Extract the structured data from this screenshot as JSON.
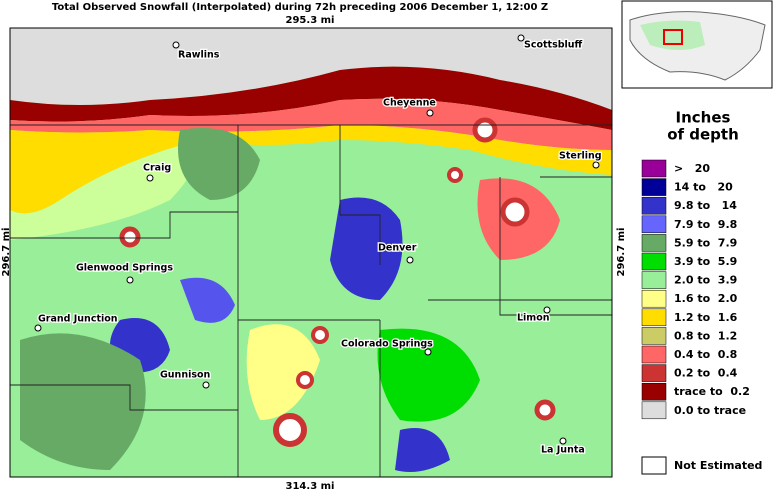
{
  "title": "Total Observed Snowfall (Interpolated) during 72h preceding 2006 December 1, 12:00 Z",
  "scale": {
    "top": "295.3 mi",
    "bottom": "314.3 mi",
    "left": "296.7 mi",
    "right": "296.7 mi"
  },
  "cities": [
    "Rawlins",
    "Scottsbluff",
    "Cheyenne",
    "Craig",
    "Sterling",
    "Denver",
    "Glenwood Springs",
    "Grand Junction",
    "Limon",
    "Colorado Springs",
    "Gunnison",
    "La Junta"
  ],
  "legend": {
    "title": [
      "Inches",
      "of depth"
    ],
    "items": [
      {
        "label": ">   20",
        "color": "#990099"
      },
      {
        "label": "14 to   20",
        "color": "#000099"
      },
      {
        "label": "9.8 to   14",
        "color": "#3333cc"
      },
      {
        "label": "7.9 to  9.8",
        "color": "#6666ff"
      },
      {
        "label": "5.9 to  7.9",
        "color": "#66aa66"
      },
      {
        "label": "3.9 to  5.9",
        "color": "#00dd00"
      },
      {
        "label": "2.0 to  3.9",
        "color": "#99ee99"
      },
      {
        "label": "1.6 to  2.0",
        "color": "#ffff88"
      },
      {
        "label": "1.2 to  1.6",
        "color": "#ffdd00"
      },
      {
        "label": "0.8 to  1.2",
        "color": "#cccc66"
      },
      {
        "label": "0.4 to  0.8",
        "color": "#ff6666"
      },
      {
        "label": "0.2 to  0.4",
        "color": "#cc3333"
      },
      {
        "label": "trace to  0.2",
        "color": "#990000"
      },
      {
        "label": "0.0 to trace",
        "color": "#dddddd"
      }
    ],
    "not_estimated": "Not Estimated"
  }
}
